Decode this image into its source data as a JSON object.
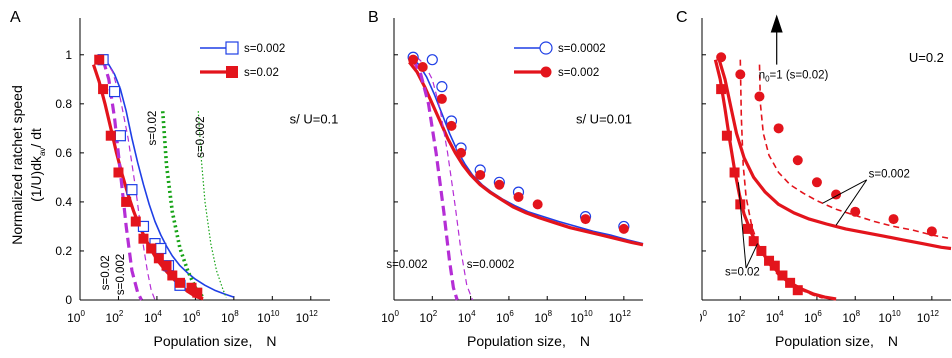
{
  "figure": {
    "ylabel_line1": "Normalized ratchet speed",
    "ylabel_line2": "(1/U)dk",
    "ylabel_sub": "av",
    "ylabel_tail": "/ dt",
    "xlabel": "Population size,",
    "xlabel_var": "N",
    "x_tick_mantissa": "10",
    "x_tick_exponents": [
      "0",
      "2",
      "4",
      "6",
      "8",
      "10",
      "12"
    ],
    "y_ticks": [
      "0",
      "0.2",
      "0.4",
      "0.6",
      "0.8",
      "1"
    ]
  },
  "colors": {
    "blue": "#1f3fe6",
    "red": "#e3141c",
    "magenta": "#b52ed6",
    "green": "#16a316",
    "black": "#000000"
  },
  "chart_data": [
    {
      "panel": "A",
      "type": "line",
      "xscale": "log10",
      "xlim_log10": [
        0,
        13
      ],
      "ylim": [
        0,
        1.15
      ],
      "annotations": [
        {
          "text": "s/ U=0.1",
          "x_log10": 10.9,
          "y": 0.72,
          "color": "black"
        },
        {
          "text": "s=0.02",
          "x_log10": 3.95,
          "y": 0.63,
          "color": "black",
          "rotate": -90
        },
        {
          "text": "s=0.002",
          "x_log10": 6.45,
          "y": 0.58,
          "color": "black",
          "rotate": -90
        },
        {
          "text": "s=0.02",
          "x_log10": 1.5,
          "y": 0.04,
          "color": "black",
          "rotate": -90
        },
        {
          "text": "s=0.002",
          "x_log10": 2.3,
          "y": 0.02,
          "color": "black",
          "rotate": -90
        }
      ],
      "legend": [
        {
          "label": "s=0.002",
          "color": "blue",
          "marker": "open-square",
          "line": "solid-thin"
        },
        {
          "label": "s=0.02",
          "color": "red",
          "marker": "filled-square",
          "line": "solid-thick"
        }
      ],
      "series": [
        {
          "name": "s=0.002",
          "color": "blue",
          "style": "solid",
          "width": 1.6,
          "x_log10": [
            1.2,
            1.5,
            1.8,
            2.1,
            2.4,
            2.7,
            3.0,
            3.3,
            3.6,
            3.9,
            4.2,
            4.5,
            4.8,
            5.2,
            5.6,
            6.0,
            6.5,
            7.0,
            7.5,
            8.0
          ],
          "y": [
            0.98,
            0.96,
            0.92,
            0.86,
            0.77,
            0.66,
            0.56,
            0.47,
            0.39,
            0.32,
            0.265,
            0.22,
            0.18,
            0.14,
            0.11,
            0.085,
            0.06,
            0.04,
            0.025,
            0.012
          ]
        },
        {
          "name": "s=0.02",
          "color": "red",
          "style": "solid",
          "width": 3.2,
          "x_log10": [
            0.7,
            1.0,
            1.3,
            1.6,
            1.9,
            2.2,
            2.5,
            2.8,
            3.1,
            3.4,
            3.7,
            4.0,
            4.4,
            4.8,
            5.2,
            5.6,
            6.0,
            6.4
          ],
          "y": [
            0.96,
            0.89,
            0.8,
            0.7,
            0.6,
            0.51,
            0.43,
            0.36,
            0.3,
            0.25,
            0.205,
            0.165,
            0.125,
            0.09,
            0.06,
            0.035,
            0.015,
            0.005
          ]
        },
        {
          "name": "s=0.02",
          "color": "magenta",
          "style": "dashed",
          "width": 3.2,
          "x_log10": [
            1.2,
            1.5,
            1.8,
            2.1,
            2.4,
            2.7,
            3.0,
            3.2
          ],
          "y": [
            0.98,
            0.9,
            0.74,
            0.52,
            0.3,
            0.12,
            0.03,
            0.0
          ]
        },
        {
          "name": "s=0.002",
          "color": "magenta",
          "style": "dashed",
          "width": 1.2,
          "x_log10": [
            1.3,
            1.7,
            2.1,
            2.5,
            2.9,
            3.2,
            3.5,
            3.7,
            3.9
          ],
          "y": [
            0.98,
            0.93,
            0.82,
            0.66,
            0.45,
            0.27,
            0.12,
            0.04,
            0.0
          ]
        },
        {
          "name": "s=0.02",
          "color": "green",
          "style": "dotted",
          "width": 3.6,
          "x_log10": [
            4.3,
            4.5,
            4.8,
            5.2,
            5.6,
            6.0,
            6.4
          ],
          "y": [
            0.77,
            0.55,
            0.36,
            0.21,
            0.12,
            0.05,
            0.01
          ]
        },
        {
          "name": "s=0.002",
          "color": "green",
          "style": "dotted",
          "width": 1.2,
          "x_log10": [
            6.15,
            6.3,
            6.5,
            6.8,
            7.1,
            7.4,
            7.6
          ],
          "y": [
            0.77,
            0.58,
            0.4,
            0.23,
            0.12,
            0.05,
            0.01
          ]
        }
      ],
      "markers": [
        {
          "name": "s=0.002",
          "color": "blue",
          "shape": "open-square",
          "x_log10": [
            1.2,
            1.8,
            2.1,
            2.7,
            3.3,
            3.9,
            4.2,
            4.6,
            5.2
          ],
          "y": [
            0.98,
            0.85,
            0.67,
            0.45,
            0.3,
            0.23,
            0.21,
            0.14,
            0.06
          ]
        },
        {
          "name": "s=0.02",
          "color": "red",
          "shape": "filled-square",
          "x_log10": [
            1.0,
            1.2,
            1.6,
            2.0,
            2.4,
            2.9,
            3.3,
            3.7,
            4.1,
            4.5,
            4.8,
            5.2,
            5.8,
            6.1
          ],
          "y": [
            0.98,
            0.86,
            0.67,
            0.52,
            0.4,
            0.32,
            0.25,
            0.21,
            0.17,
            0.14,
            0.1,
            0.07,
            0.05,
            0.03
          ]
        }
      ]
    },
    {
      "panel": "B",
      "type": "line",
      "xscale": "log10",
      "xlim_log10": [
        0,
        13
      ],
      "ylim": [
        0,
        1.15
      ],
      "annotations": [
        {
          "text": "s/ U=0.01",
          "x_log10": 9.5,
          "y": 0.72,
          "color": "black"
        },
        {
          "text": "s=0.002",
          "x_log10": -0.4,
          "y": 0.13,
          "color": "black"
        },
        {
          "text": "s=0.0002",
          "x_log10": 3.8,
          "y": 0.13,
          "color": "black"
        }
      ],
      "legend": [
        {
          "label": "s=0.0002",
          "color": "blue",
          "marker": "open-circle",
          "line": "solid-thin"
        },
        {
          "label": "s=0.002",
          "color": "red",
          "marker": "filled-circle",
          "line": "solid-thick"
        }
      ],
      "series": [
        {
          "name": "s=0.0002",
          "color": "blue",
          "style": "solid",
          "width": 1.6,
          "x_log10": [
            0.9,
            1.3,
            1.7,
            2.1,
            2.5,
            2.9,
            3.3,
            3.7,
            4.1,
            4.6,
            5.1,
            5.7,
            6.3,
            7.0,
            7.8,
            8.6,
            9.5,
            10.4,
            11.3,
            12.2,
            13.0
          ],
          "y": [
            0.99,
            0.96,
            0.91,
            0.84,
            0.76,
            0.68,
            0.61,
            0.555,
            0.51,
            0.47,
            0.44,
            0.41,
            0.385,
            0.36,
            0.34,
            0.32,
            0.3,
            0.28,
            0.265,
            0.245,
            0.23
          ]
        },
        {
          "name": "s=0.002",
          "color": "red",
          "style": "solid",
          "width": 3.2,
          "x_log10": [
            0.8,
            1.2,
            1.6,
            2.0,
            2.4,
            2.8,
            3.2,
            3.6,
            4.0,
            4.5,
            5.0,
            5.6,
            6.2,
            6.9,
            7.6,
            8.4,
            9.2,
            10.0,
            10.8,
            11.6,
            12.4,
            13.0
          ],
          "y": [
            0.97,
            0.93,
            0.87,
            0.8,
            0.73,
            0.66,
            0.6,
            0.55,
            0.51,
            0.47,
            0.44,
            0.41,
            0.38,
            0.355,
            0.335,
            0.315,
            0.295,
            0.28,
            0.265,
            0.25,
            0.235,
            0.225
          ]
        },
        {
          "name": "s=0.002",
          "color": "magenta",
          "style": "dashed",
          "width": 3.2,
          "x_log10": [
            1.0,
            1.4,
            1.8,
            2.2,
            2.6,
            2.9,
            3.1,
            3.3
          ],
          "y": [
            0.98,
            0.92,
            0.8,
            0.6,
            0.36,
            0.16,
            0.05,
            0.0
          ]
        },
        {
          "name": "s=0.0002",
          "color": "magenta",
          "style": "dashed",
          "width": 1.2,
          "x_log10": [
            1.2,
            1.6,
            2.0,
            2.4,
            2.8,
            3.2,
            3.5,
            3.8,
            4.1
          ],
          "y": [
            0.99,
            0.96,
            0.9,
            0.78,
            0.6,
            0.38,
            0.2,
            0.06,
            0.0
          ]
        }
      ],
      "markers": [
        {
          "name": "s=0.0002",
          "color": "blue",
          "shape": "open-circle",
          "x_log10": [
            1.0,
            2.0,
            2.5,
            3.0,
            3.5,
            4.5,
            5.5,
            6.5,
            10.0,
            12.0
          ],
          "y": [
            0.99,
            0.98,
            0.87,
            0.73,
            0.62,
            0.53,
            0.48,
            0.44,
            0.34,
            0.3
          ]
        },
        {
          "name": "s=0.002",
          "color": "red",
          "shape": "filled-circle",
          "x_log10": [
            1.0,
            1.5,
            2.5,
            3.0,
            3.5,
            4.5,
            5.5,
            6.5,
            7.5,
            10.0,
            12.0
          ],
          "y": [
            0.98,
            0.95,
            0.82,
            0.71,
            0.6,
            0.51,
            0.47,
            0.42,
            0.39,
            0.33,
            0.29
          ]
        }
      ]
    },
    {
      "panel": "C",
      "type": "line",
      "xscale": "log10",
      "xlim_log10": [
        0,
        13
      ],
      "ylim": [
        0,
        1.15
      ],
      "annotations": [
        {
          "text": "U=0.2",
          "x_log10": 10.8,
          "y": 0.97,
          "color": "black"
        },
        {
          "text": "s=0.002",
          "x_log10": 8.7,
          "y": 0.5,
          "color": "black"
        },
        {
          "text": "s=0.02",
          "x_log10": 1.2,
          "y": 0.1,
          "color": "black"
        }
      ],
      "arrow": {
        "label_main": "n",
        "label_sub": "0",
        "label_rest": "=1  (s=0.02)",
        "x_log10": 3.9,
        "y_from": 0.96,
        "y_to": 1.14
      },
      "series": [
        {
          "name": "s=0.02",
          "color": "red",
          "style": "solid",
          "width": 3.2,
          "x_log10": [
            0.7,
            0.95,
            1.2,
            1.45,
            1.7,
            1.95,
            2.2,
            2.6,
            3.0,
            3.5,
            4.0,
            4.6,
            5.2,
            5.8,
            6.4,
            7.0
          ],
          "y": [
            0.98,
            0.9,
            0.78,
            0.65,
            0.53,
            0.43,
            0.35,
            0.27,
            0.21,
            0.155,
            0.11,
            0.07,
            0.045,
            0.025,
            0.012,
            0.004
          ]
        },
        {
          "name": "s=0.002",
          "color": "red",
          "style": "solid",
          "width": 3.2,
          "x_log10": [
            0.9,
            1.2,
            1.5,
            1.8,
            2.2,
            2.7,
            3.3,
            4.0,
            4.8,
            5.6,
            6.5,
            7.5,
            8.5,
            9.5,
            10.5,
            11.5,
            12.5,
            13.0
          ],
          "y": [
            0.98,
            0.9,
            0.79,
            0.68,
            0.58,
            0.5,
            0.44,
            0.39,
            0.355,
            0.33,
            0.31,
            0.29,
            0.275,
            0.26,
            0.245,
            0.23,
            0.215,
            0.21
          ]
        },
        {
          "name": "s=0.02",
          "color": "red",
          "style": "dashed",
          "width": 1.6,
          "x_log10": [
            2.0,
            2.05,
            2.15,
            2.3,
            2.6,
            3.0,
            3.5,
            4.0,
            4.6,
            5.2,
            5.8,
            6.3
          ],
          "y": [
            0.98,
            0.75,
            0.55,
            0.42,
            0.3,
            0.21,
            0.145,
            0.1,
            0.065,
            0.04,
            0.02,
            0.008
          ]
        },
        {
          "name": "s=0.002",
          "color": "red",
          "style": "dashed",
          "width": 1.6,
          "x_log10": [
            3.0,
            3.05,
            3.2,
            3.5,
            4.0,
            4.6,
            5.3,
            6.0,
            7.0,
            8.0,
            9.0,
            10.0,
            11.0,
            12.0,
            13.0
          ],
          "y": [
            0.96,
            0.8,
            0.68,
            0.59,
            0.52,
            0.47,
            0.435,
            0.405,
            0.37,
            0.345,
            0.32,
            0.3,
            0.285,
            0.265,
            0.25
          ]
        }
      ],
      "markers": [
        {
          "name": "s=0.02",
          "color": "red",
          "shape": "filled-square",
          "x_log10": [
            1.0,
            1.3,
            1.7,
            2.0,
            2.4,
            2.7,
            3.1,
            3.5,
            3.8,
            4.2,
            4.6,
            5.0
          ],
          "y": [
            0.86,
            0.67,
            0.52,
            0.39,
            0.29,
            0.24,
            0.2,
            0.16,
            0.14,
            0.1,
            0.07,
            0.04
          ]
        },
        {
          "name": "s=0.002",
          "color": "red",
          "shape": "filled-circle",
          "x_log10": [
            1.0,
            2.0,
            3.0,
            4.0,
            5.0,
            6.0,
            7.0,
            8.0,
            10.0,
            12.0
          ],
          "y": [
            0.99,
            0.92,
            0.83,
            0.7,
            0.57,
            0.48,
            0.43,
            0.36,
            0.33,
            0.28
          ]
        }
      ]
    }
  ]
}
